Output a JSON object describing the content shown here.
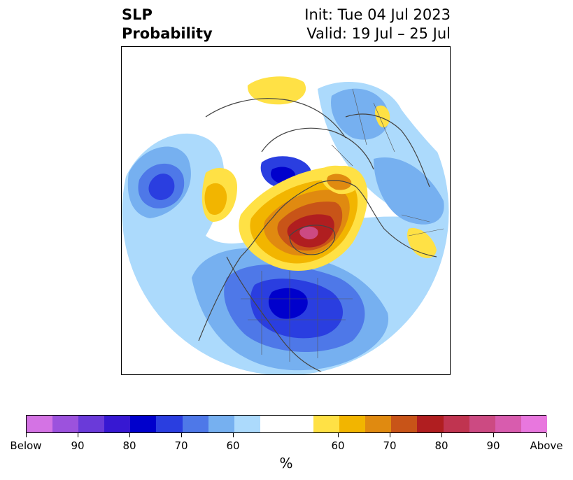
{
  "title": {
    "left_lines": [
      "SLP",
      "Probability"
    ],
    "right_lines": [
      "Init: Tue 04 Jul 2023",
      "Valid: 19 Jul – 25 Jul"
    ]
  },
  "map": {
    "projection": "north-polar-stereographic",
    "field": "SLP probability",
    "features": [
      "coastlines",
      "country borders",
      "US state borders"
    ]
  },
  "colorbar": {
    "unit_label": "%",
    "tick_labels": [
      "Below",
      "90",
      "80",
      "70",
      "60",
      "60",
      "70",
      "80",
      "90",
      "Above"
    ],
    "colors": [
      "#d473e4",
      "#9c52dd",
      "#6a3ad9",
      "#3718d2",
      "#0000cc",
      "#2a3ee0",
      "#4e78e8",
      "#76b0f0",
      "#acdafc",
      "#ffffff",
      "#ffe145",
      "#f2b500",
      "#e08a10",
      "#c85418",
      "#b01e20",
      "#c03450",
      "#cc4a82",
      "#d85cae",
      "#e877de"
    ]
  }
}
